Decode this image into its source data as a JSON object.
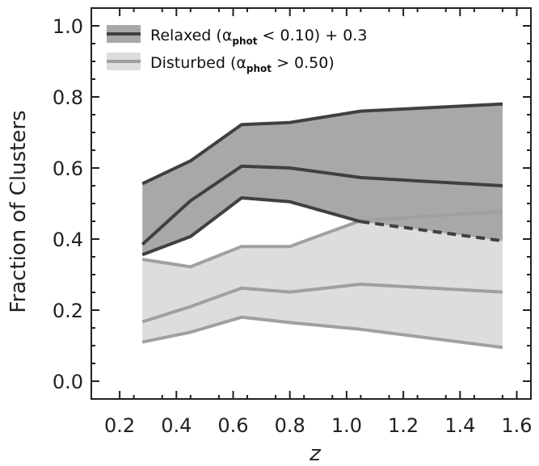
{
  "chart_data": {
    "type": "area",
    "xlabel": "z",
    "ylabel": "Fraction of Clusters",
    "xlim": [
      0.1,
      1.65
    ],
    "ylim": [
      -0.05,
      1.05
    ],
    "xticks": [
      "0.2",
      "0.4",
      "0.6",
      "0.8",
      "1.0",
      "1.2",
      "1.4",
      "1.6"
    ],
    "xtick_values": [
      0.2,
      0.4,
      0.6,
      0.8,
      1.0,
      1.2,
      1.4,
      1.6
    ],
    "yticks": [
      "0.0",
      "0.2",
      "0.4",
      "0.6",
      "0.8",
      "1.0"
    ],
    "ytick_values": [
      0.0,
      0.2,
      0.4,
      0.6,
      0.8,
      1.0
    ],
    "grid": false,
    "legend_position": "top-left",
    "series": [
      {
        "name": "Relaxed",
        "legend_prefix": "Relaxed (",
        "legend_symbol": "α",
        "legend_subscript": "phot",
        "legend_suffix": " < 0.10) + 0.3",
        "fill_color": "#a8a8a8",
        "line_color": "#404040",
        "x": [
          0.28,
          0.45,
          0.63,
          0.8,
          1.05,
          1.55
        ],
        "center": [
          0.385,
          0.508,
          0.605,
          0.6,
          0.573,
          0.55
        ],
        "upper": [
          0.556,
          0.62,
          0.722,
          0.728,
          0.76,
          0.78
        ],
        "lower": [
          0.356,
          0.407,
          0.516,
          0.505,
          0.449,
          0.395
        ],
        "lower_dashed_from_x": 1.05
      },
      {
        "name": "Disturbed",
        "legend_prefix": "Disturbed (",
        "legend_symbol": "α",
        "legend_subscript": "phot",
        "legend_suffix": " > 0.50)",
        "fill_color": "#dddddd",
        "line_color": "#a0a0a0",
        "x": [
          0.28,
          0.45,
          0.63,
          0.8,
          1.05,
          1.55
        ],
        "center": [
          0.167,
          0.21,
          0.262,
          0.251,
          0.273,
          0.251
        ],
        "upper": [
          0.343,
          0.322,
          0.379,
          0.379,
          0.452,
          0.478
        ],
        "lower": [
          0.11,
          0.138,
          0.18,
          0.165,
          0.146,
          0.095
        ]
      }
    ]
  }
}
